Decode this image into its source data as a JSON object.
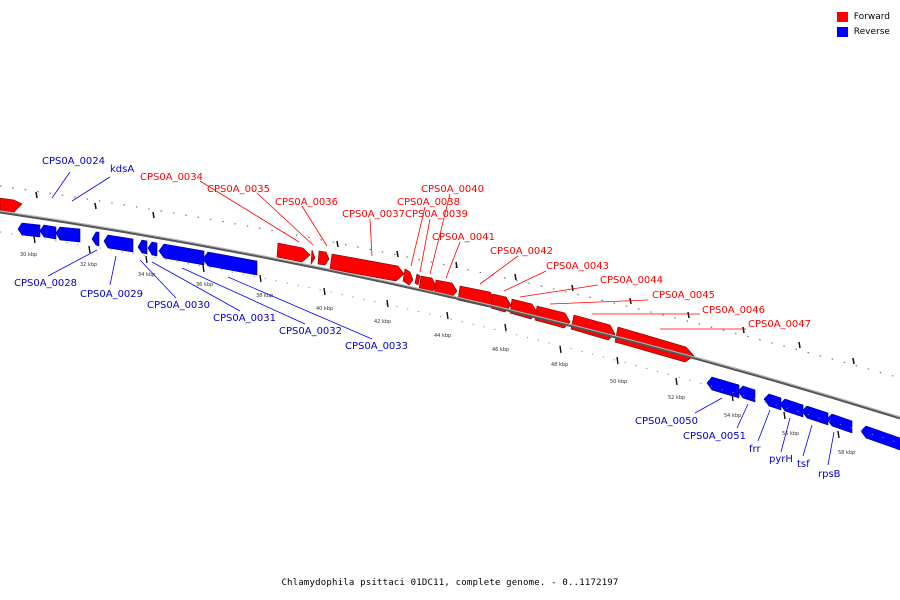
{
  "legend": {
    "forward_label": "Forward",
    "reverse_label": "Reverse",
    "forward_color": "#ff0000",
    "reverse_color": "#0000ff"
  },
  "caption": "Chlamydophila psittaci 01DC11, complete genome. - 0..1172197",
  "genes_forward": [
    "CPS0A_0034",
    "CPS0A_0035",
    "CPS0A_0036",
    "CPS0A_0037",
    "CPS0A_0038",
    "CPS0A_0039",
    "CPS0A_0040",
    "CPS0A_0041",
    "CPS0A_0042",
    "CPS0A_0043",
    "CPS0A_0044",
    "CPS0A_0045",
    "CPS0A_0046",
    "CPS0A_0047"
  ],
  "genes_reverse": [
    "CPS0A_0024",
    "kdsA",
    "CPS0A_0028",
    "CPS0A_0029",
    "CPS0A_0030",
    "CPS0A_0031",
    "CPS0A_0032",
    "CPS0A_0033",
    "CPS0A_0050",
    "CPS0A_0051",
    "frr",
    "pyrH",
    "tsf",
    "rpsB"
  ],
  "scale_labels": [
    "30 kbp",
    "32 kbp",
    "34 kbp",
    "36 kbp",
    "38 kbp",
    "40 kbp",
    "42 kbp",
    "44 kbp",
    "46 kbp",
    "48 kbp",
    "50 kbp",
    "52 kbp",
    "54 kbp",
    "56 kbp",
    "58 kbp"
  ]
}
